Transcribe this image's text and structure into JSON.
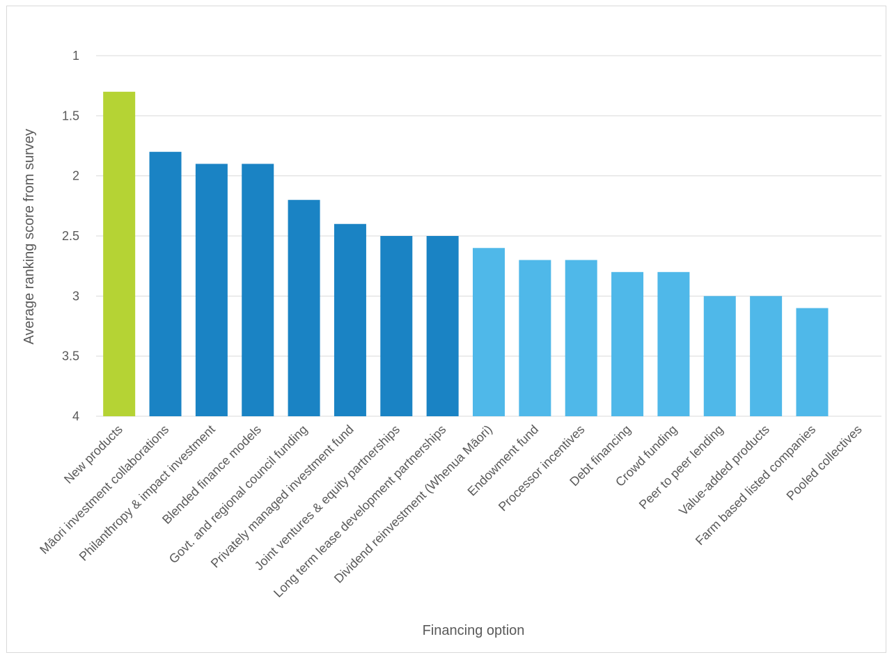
{
  "chart_data": {
    "type": "bar",
    "title": "",
    "xlabel": "Financing option",
    "ylabel": "Average ranking score from survey",
    "ylim": [
      4,
      1
    ],
    "y_axis_reversed": true,
    "y_ticks": [
      "1",
      "1.5",
      "2",
      "2.5",
      "3",
      "3.5",
      "4"
    ],
    "grid": true,
    "legend": "none",
    "categories": [
      "New products",
      "Māori investment collaborations",
      "Philanthropy & impact investment",
      "Blended finance models",
      "Govt. and regional council funding",
      "Privately managed investment fund",
      "Joint ventures & equity partnerships",
      "Long term lease development partnerships",
      "Dividend reinvestment (Whenua Māori)",
      "Endowment fund",
      "Processor incentives",
      "Debt financing",
      "Crowd funding",
      "Peer to peer lending",
      "Value-added products",
      "Farm based listed companies",
      "Pooled collectives"
    ],
    "values": [
      1.3,
      1.8,
      1.9,
      1.9,
      2.2,
      2.4,
      2.5,
      2.5,
      2.6,
      2.7,
      2.7,
      2.8,
      2.8,
      3.0,
      3.0,
      3.1,
      4.0
    ],
    "bar_colors": [
      "#b5d334",
      "#1a83c4",
      "#1a83c4",
      "#1a83c4",
      "#1a83c4",
      "#1a83c4",
      "#1a83c4",
      "#1a83c4",
      "#4fb8e9",
      "#4fb8e9",
      "#4fb8e9",
      "#4fb8e9",
      "#4fb8e9",
      "#4fb8e9",
      "#4fb8e9",
      "#4fb8e9",
      "#4fb8e9"
    ],
    "colors": {
      "grid": "#d9d9d9",
      "text": "#595959"
    }
  }
}
